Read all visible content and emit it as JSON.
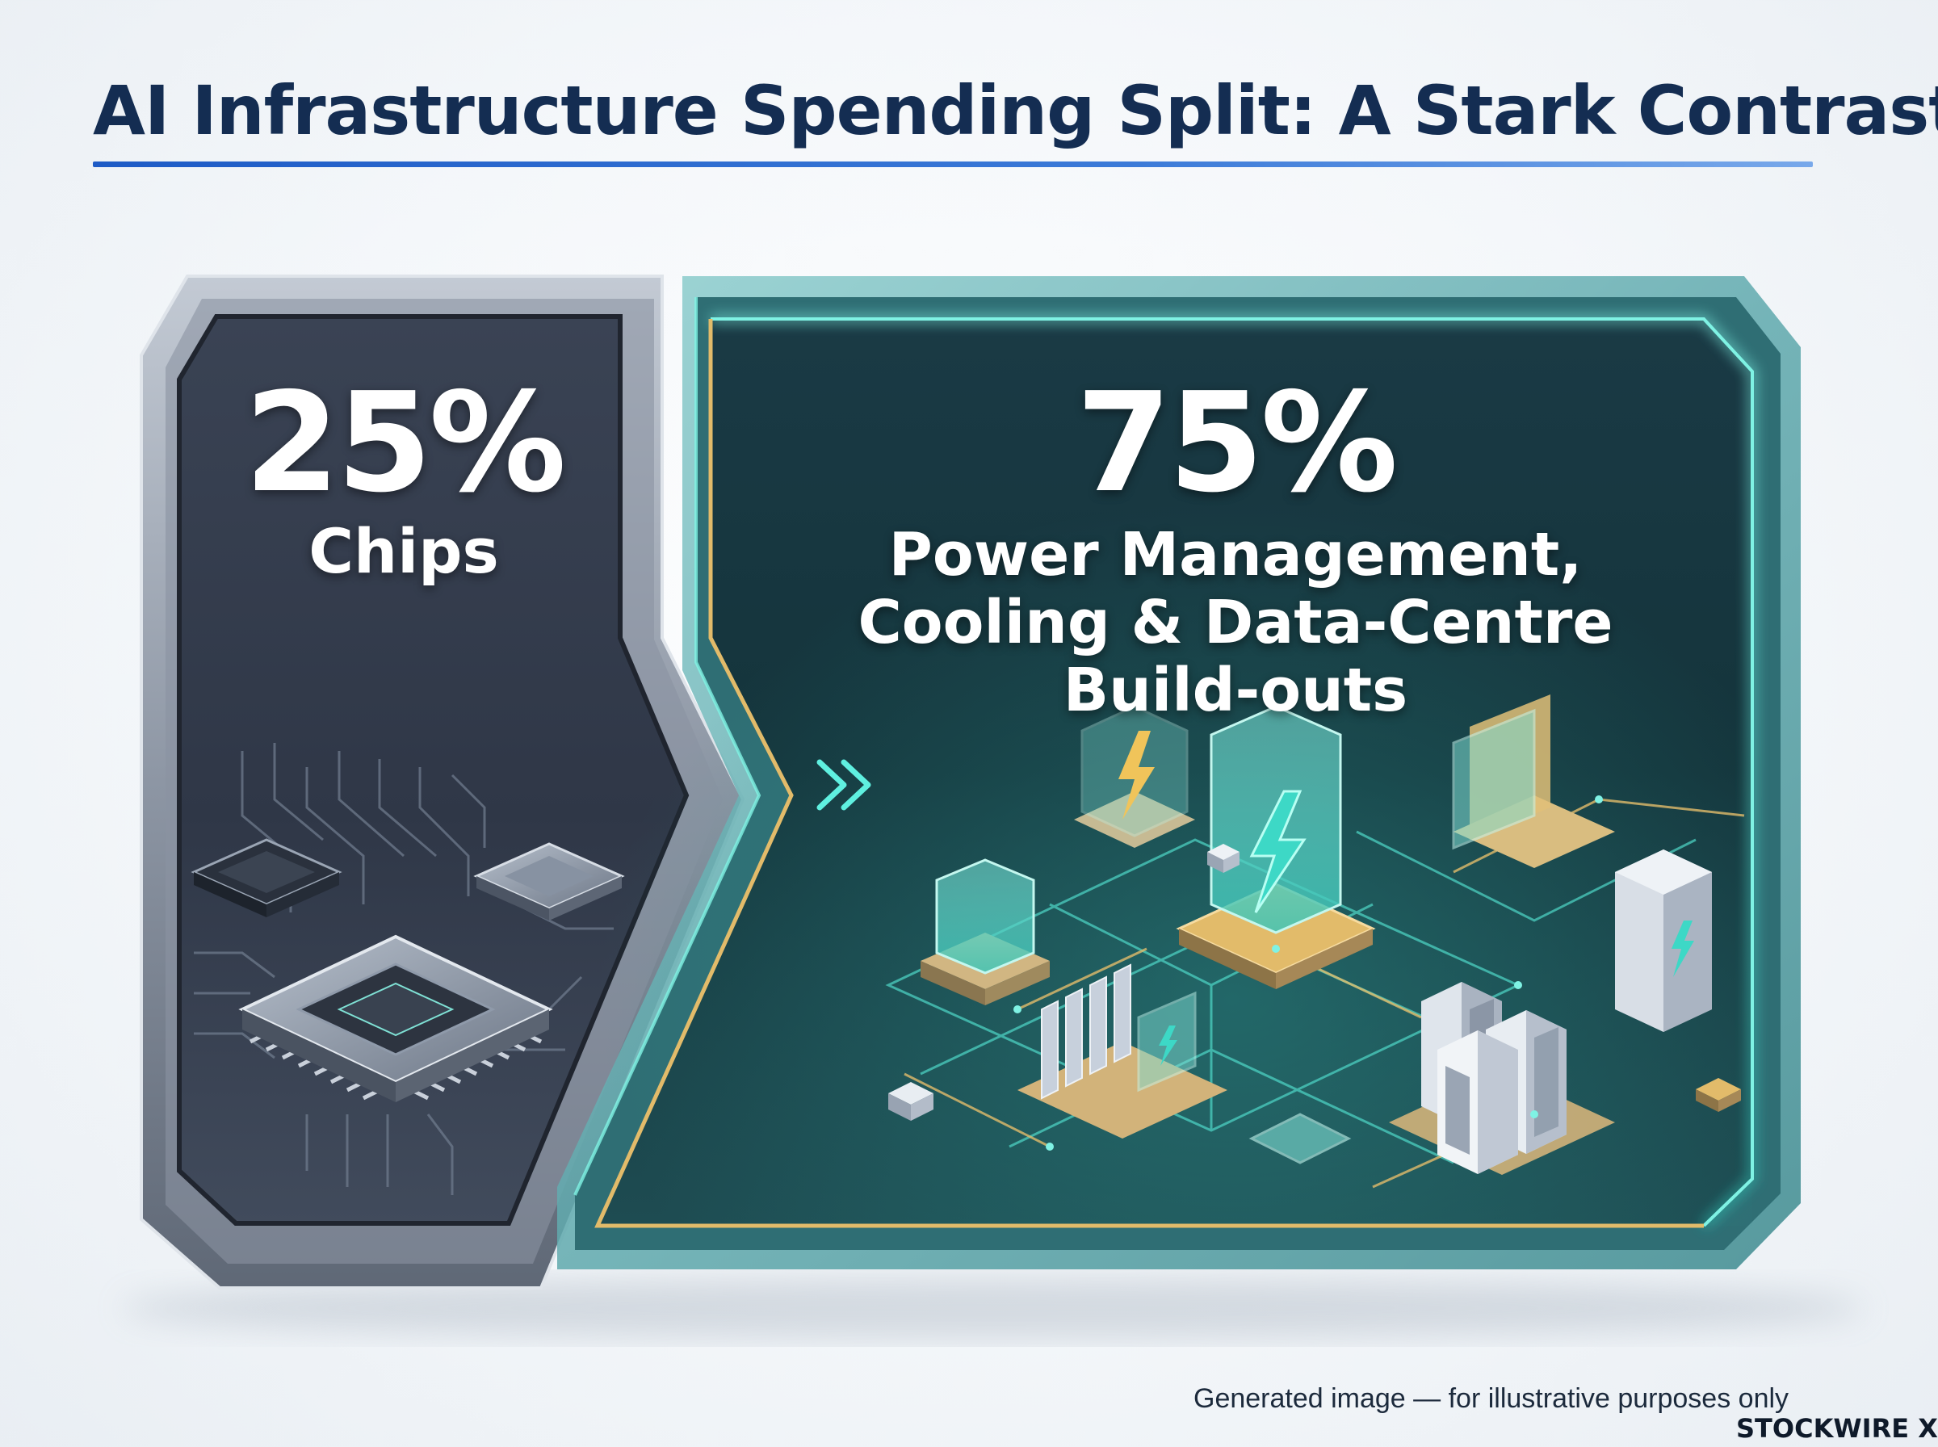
{
  "title": "AI Infrastructure Spending Split: A Stark Contrast",
  "left_panel": {
    "percent": "25%",
    "category": "Chips"
  },
  "right_panel": {
    "percent": "75%",
    "category_lines": [
      "Power Management,",
      "Cooling & Data-Centre",
      "Build-outs"
    ]
  },
  "footer": {
    "disclaimer": "Generated image — for illustrative purposes only",
    "brand": "STOCKWIRE X"
  },
  "icons": [
    "chevron-double-right-icon",
    "lightning-icon",
    "server-rack-icon",
    "microchip-icon",
    "circuit-traces-icon"
  ],
  "colors": {
    "title": "#142d52",
    "title_rule": "#1e5bc6",
    "left_panel": "#333c4d",
    "right_panel": "#143a40",
    "accent_teal": "#3fe0cf",
    "accent_gold": "#e2bb6a"
  }
}
